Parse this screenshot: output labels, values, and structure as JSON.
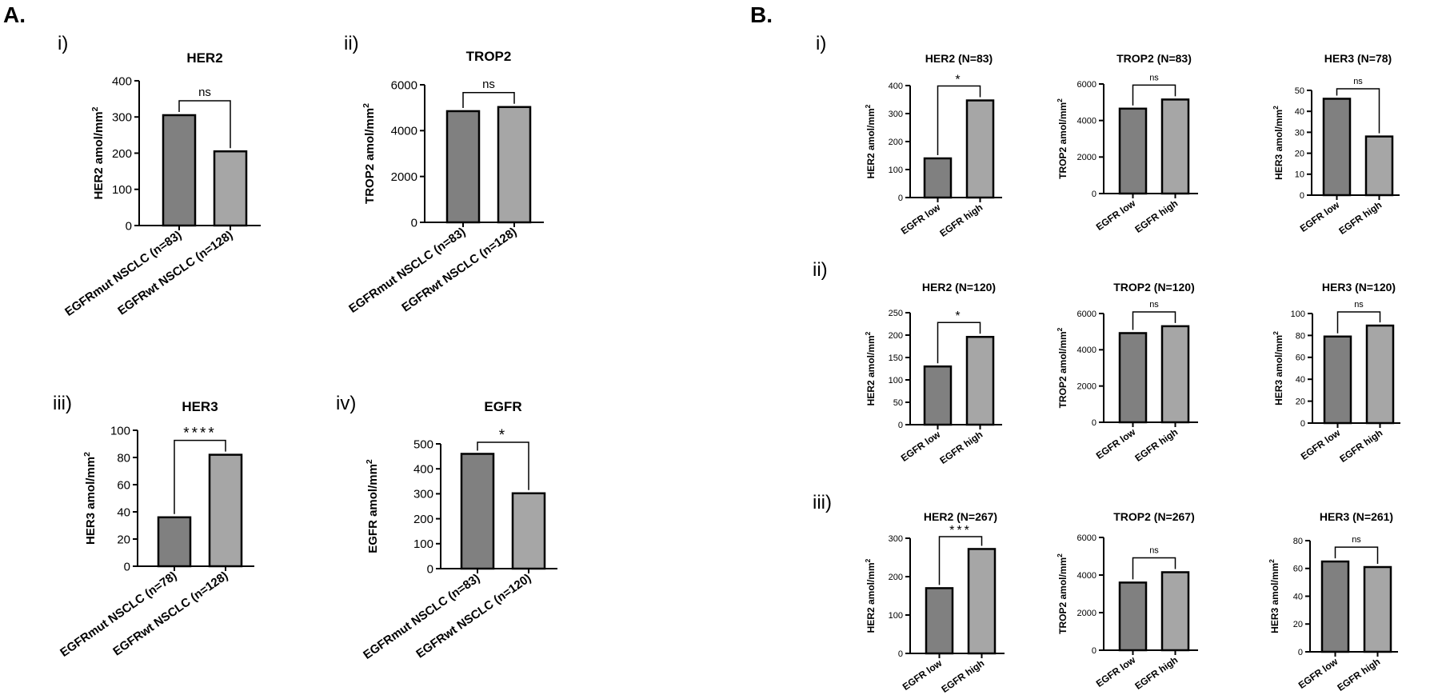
{
  "figure": {
    "panel_a_label": "A.",
    "panel_b_label": "B.",
    "a_sub": [
      "i)",
      "ii)",
      "iii)",
      "iv)"
    ],
    "b_sub": [
      "i)",
      "ii)",
      "iii)"
    ],
    "colors": {
      "dark_bar": "#808080",
      "light_bar": "#a6a6a6"
    }
  },
  "chart_data": [
    {
      "type": "bar",
      "panel": "A.i",
      "title": "HER2",
      "ylabel": "HER2 amol/mm",
      "ylabel_sup": "2",
      "categories": [
        "EGFRmut NSCLC (n=83)",
        "EGFRwt NSCLC (n=128)"
      ],
      "values": [
        305,
        205
      ],
      "ylim": [
        0,
        400
      ],
      "yticks": [
        0,
        100,
        200,
        300,
        400
      ],
      "significance": "ns"
    },
    {
      "type": "bar",
      "panel": "A.ii",
      "title": "TROP2",
      "ylabel": "TROP2 amol/mm",
      "ylabel_sup": "2",
      "categories": [
        "EGFRmut NSCLC (n=83)",
        "EGFRwt NSCLC (n=128)"
      ],
      "values": [
        4850,
        5030
      ],
      "ylim": [
        0,
        6000
      ],
      "yticks": [
        0,
        2000,
        4000,
        6000
      ],
      "significance": "ns"
    },
    {
      "type": "bar",
      "panel": "A.iii",
      "title": "HER3",
      "ylabel": "HER3 amol/mm",
      "ylabel_sup": "2",
      "categories": [
        "EGFRmut NSCLC (n=78)",
        "EGFRwt NSCLC (n=128)"
      ],
      "values": [
        36,
        82
      ],
      "ylim": [
        0,
        100
      ],
      "yticks": [
        0,
        20,
        40,
        60,
        80,
        100
      ],
      "significance": "****"
    },
    {
      "type": "bar",
      "panel": "A.iv",
      "title": "EGFR",
      "ylabel": "EGFR amol/mm",
      "ylabel_sup": "2",
      "categories": [
        "EGFRmut NSCLC (n=83)",
        "EGFRwt NSCLC (n=120)"
      ],
      "values": [
        460,
        302
      ],
      "ylim": [
        0,
        500
      ],
      "yticks": [
        0,
        100,
        200,
        300,
        400,
        500
      ],
      "significance": "*"
    },
    {
      "type": "bar",
      "panel": "B.i.1",
      "title": "HER2 (N=83)",
      "ylabel": "HER2 amol/mm",
      "ylabel_sup": "2",
      "categories": [
        "EGFR low",
        "EGFR high"
      ],
      "values": [
        140,
        347
      ],
      "ylim": [
        0,
        400
      ],
      "yticks": [
        0,
        100,
        200,
        300,
        400
      ],
      "significance": "*"
    },
    {
      "type": "bar",
      "panel": "B.i.2",
      "title": "TROP2 (N=83)",
      "ylabel": "TROP2 amol/mm",
      "ylabel_sup": "2",
      "categories": [
        "EGFR low",
        "EGFR high"
      ],
      "values": [
        4650,
        5150
      ],
      "ylim": [
        0,
        6000
      ],
      "yticks": [
        0,
        2000,
        4000,
        6000
      ],
      "significance": "ns"
    },
    {
      "type": "bar",
      "panel": "B.i.3",
      "title": "HER3 (N=78)",
      "ylabel": "HER3 amol/mm",
      "ylabel_sup": "2",
      "categories": [
        "EGFR low",
        "EGFR high"
      ],
      "values": [
        46,
        28
      ],
      "ylim": [
        0,
        50
      ],
      "yticks": [
        0,
        10,
        20,
        30,
        40,
        50
      ],
      "significance": "ns"
    },
    {
      "type": "bar",
      "panel": "B.ii.1",
      "title": "HER2 (N=120)",
      "ylabel": "HER2 amol/mm",
      "ylabel_sup": "2",
      "categories": [
        "EGFR low",
        "EGFR high"
      ],
      "values": [
        130,
        196
      ],
      "ylim": [
        0,
        250
      ],
      "yticks": [
        0,
        50,
        100,
        150,
        200,
        250
      ],
      "significance": "*"
    },
    {
      "type": "bar",
      "panel": "B.ii.2",
      "title": "TROP2 (N=120)",
      "ylabel": "TROP2 amol/mm",
      "ylabel_sup": "2",
      "categories": [
        "EGFR low",
        "EGFR high"
      ],
      "values": [
        4920,
        5300
      ],
      "ylim": [
        0,
        6000
      ],
      "yticks": [
        0,
        2000,
        4000,
        6000
      ],
      "significance": "ns"
    },
    {
      "type": "bar",
      "panel": "B.ii.3",
      "title": "HER3 (N=120)",
      "ylabel": "HER3 amol/mm",
      "ylabel_sup": "2",
      "categories": [
        "EGFR low",
        "EGFR high"
      ],
      "values": [
        79,
        89
      ],
      "ylim": [
        0,
        100
      ],
      "yticks": [
        0,
        20,
        40,
        60,
        80,
        100
      ],
      "significance": "ns"
    },
    {
      "type": "bar",
      "panel": "B.iii.1",
      "title": "HER2 (N=267)",
      "ylabel": "HER2 amol/mm",
      "ylabel_sup": "2",
      "categories": [
        "EGFR low",
        "EGFR high"
      ],
      "values": [
        170,
        272
      ],
      "ylim": [
        0,
        300
      ],
      "yticks": [
        0,
        100,
        200,
        300
      ],
      "significance": "***"
    },
    {
      "type": "bar",
      "panel": "B.iii.2",
      "title": "TROP2 (N=267)",
      "ylabel": "TROP2 amol/mm",
      "ylabel_sup": "2",
      "categories": [
        "EGFR low",
        "EGFR high"
      ],
      "values": [
        3600,
        4150
      ],
      "ylim": [
        0,
        6000
      ],
      "yticks": [
        0,
        2000,
        4000,
        6000
      ],
      "significance": "ns"
    },
    {
      "type": "bar",
      "panel": "B.iii.3",
      "title": "HER3 (N=261)",
      "ylabel": "HER3 amol/mm",
      "ylabel_sup": "2",
      "categories": [
        "EGFR low",
        "EGFR high"
      ],
      "values": [
        65,
        61
      ],
      "ylim": [
        0,
        80
      ],
      "yticks": [
        0,
        20,
        40,
        60,
        80
      ],
      "significance": "ns"
    }
  ]
}
